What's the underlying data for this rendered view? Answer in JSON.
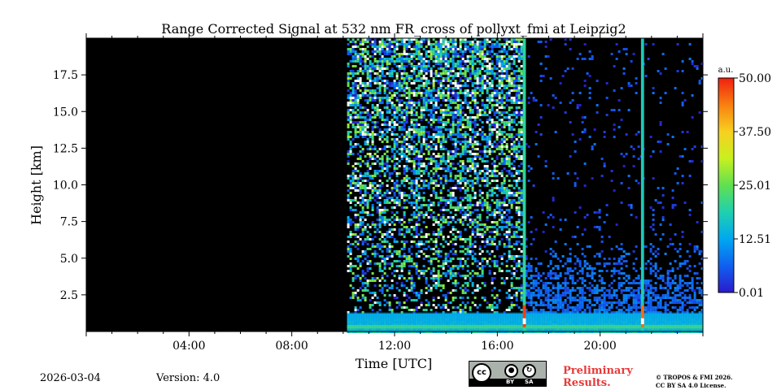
{
  "chart_data": {
    "type": "heatmap",
    "title": "Range Corrected Signal at 532 nm FR_cross of pollyxt_fmi at Leipzig2",
    "xlabel": "Time [UTC]",
    "ylabel": "Height [km]",
    "x_unit": "hours UTC",
    "xlim": [
      0,
      24
    ],
    "ylim": [
      0.0,
      20.0
    ],
    "x_ticks": [
      {
        "value": 4,
        "label": "04:00"
      },
      {
        "value": 8,
        "label": "08:00"
      },
      {
        "value": 12,
        "label": "12:00"
      },
      {
        "value": 16,
        "label": "16:00"
      },
      {
        "value": 20,
        "label": "20:00"
      }
    ],
    "y_ticks": [
      {
        "value": 2.5,
        "label": "2.5"
      },
      {
        "value": 5.0,
        "label": "5.0"
      },
      {
        "value": 7.5,
        "label": "7.5"
      },
      {
        "value": 10.0,
        "label": "10.0"
      },
      {
        "value": 12.5,
        "label": "12.5"
      },
      {
        "value": 15.0,
        "label": "15.0"
      },
      {
        "value": 17.5,
        "label": "17.5"
      }
    ],
    "colorbar": {
      "unit": "a.u.",
      "min": 0.01,
      "max": 50.0,
      "ticks": [
        {
          "value": 0.01,
          "label": "0.01"
        },
        {
          "value": 12.51,
          "label": "12.51"
        },
        {
          "value": 25.01,
          "label": "25.01"
        },
        {
          "value": 37.5,
          "label": "37.50"
        },
        {
          "value": 50.0,
          "label": "50.00"
        }
      ],
      "colormap": [
        "#2b1bcc",
        "#1060f0",
        "#00a8f0",
        "#20d0b0",
        "#60e050",
        "#c8f020",
        "#f8d020",
        "#f88010",
        "#f02010"
      ]
    },
    "no_data": {
      "start": 0.0,
      "end": 10.15,
      "color": "#000000"
    },
    "background_color": "#000000",
    "boundary_layer": {
      "start": 10.15,
      "end": 24.0,
      "top_km": 1.3,
      "value": 13,
      "peak_value": 22
    },
    "cloud_columns": [
      {
        "time": 17.05,
        "width_h": 0.12,
        "value": 20,
        "peak_value": 48
      },
      {
        "time": 21.65,
        "width_h": 0.12,
        "value": 18,
        "peak_value": 45
      }
    ],
    "noise_region": {
      "start": 10.15,
      "end": 17.0,
      "max_km": 20.0,
      "value": 30
    }
  },
  "footer": {
    "date": "2026-03-04",
    "version": "Version: 4.0",
    "license_badge": {
      "cc": "cc",
      "by": "BY",
      "sa": "SA"
    },
    "preliminary_line1": "Preliminary",
    "preliminary_line2": "Results.",
    "copyright_line1": "© TROPOS & FMI 2026.",
    "copyright_line2": "CC BY SA 4.0 License."
  }
}
